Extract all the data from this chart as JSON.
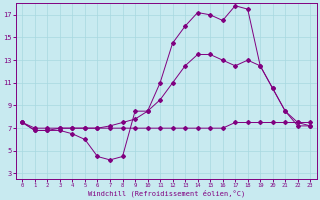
{
  "xlabel": "Windchill (Refroidissement éolien,°C)",
  "bg_color": "#c8eaf0",
  "line_color": "#800080",
  "grid_color": "#a8d8e0",
  "xlim": [
    -0.5,
    23.5
  ],
  "ylim": [
    2.5,
    18.0
  ],
  "xticks": [
    0,
    1,
    2,
    3,
    4,
    5,
    6,
    7,
    8,
    9,
    10,
    11,
    12,
    13,
    14,
    15,
    16,
    17,
    18,
    19,
    20,
    21,
    22,
    23
  ],
  "yticks": [
    3,
    5,
    7,
    9,
    11,
    13,
    15,
    17
  ],
  "line1_x": [
    0,
    1,
    2,
    3,
    4,
    5,
    6,
    7,
    8,
    9,
    10,
    11,
    12,
    13,
    14,
    15,
    16,
    17,
    18,
    19,
    20,
    21,
    22,
    23
  ],
  "line1_y": [
    7.5,
    6.8,
    6.8,
    6.8,
    6.5,
    6.0,
    4.5,
    4.2,
    4.5,
    8.5,
    8.5,
    11.0,
    14.5,
    16.0,
    17.2,
    17.0,
    16.5,
    17.8,
    17.5,
    12.5,
    10.5,
    8.5,
    7.2,
    7.2
  ],
  "line2_x": [
    0,
    1,
    2,
    3,
    4,
    5,
    6,
    7,
    8,
    9,
    10,
    11,
    12,
    13,
    14,
    15,
    16,
    17,
    18,
    19,
    20,
    21,
    22,
    23
  ],
  "line2_y": [
    7.5,
    6.8,
    6.8,
    7.0,
    7.0,
    7.0,
    7.0,
    7.2,
    7.5,
    7.8,
    8.5,
    9.5,
    11.0,
    12.5,
    13.5,
    13.5,
    13.0,
    12.5,
    13.0,
    12.5,
    10.5,
    8.5,
    7.5,
    7.2
  ],
  "line3_x": [
    0,
    1,
    2,
    3,
    4,
    5,
    6,
    7,
    8,
    9,
    10,
    11,
    12,
    13,
    14,
    15,
    16,
    17,
    18,
    19,
    20,
    21,
    22,
    23
  ],
  "line3_y": [
    7.5,
    7.0,
    7.0,
    7.0,
    7.0,
    7.0,
    7.0,
    7.0,
    7.0,
    7.0,
    7.0,
    7.0,
    7.0,
    7.0,
    7.0,
    7.0,
    7.0,
    7.5,
    7.5,
    7.5,
    7.5,
    7.5,
    7.5,
    7.5
  ]
}
